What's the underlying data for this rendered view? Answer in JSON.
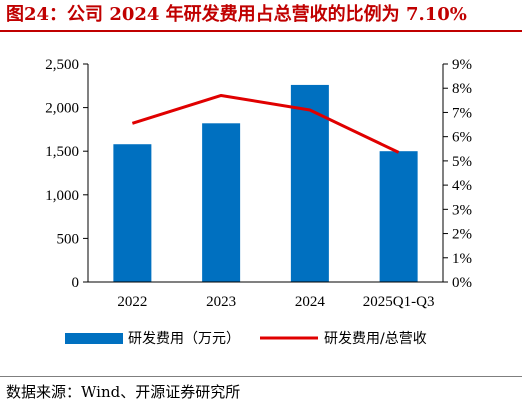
{
  "figure": {
    "title": "图24：公司 2024 年研发费用占总营收的比例为 7.10%",
    "source": "数据来源：Wind、开源证券研究所"
  },
  "chart_data": {
    "type": "bar+line",
    "categories": [
      "2022",
      "2023",
      "2024",
      "2025Q1-Q3"
    ],
    "series": [
      {
        "name": "研发费用（万元）",
        "type": "bar",
        "axis": "left",
        "color": "#0070c0",
        "values": [
          1580,
          1820,
          2260,
          1500
        ]
      },
      {
        "name": "研发费用/总营收",
        "type": "line",
        "axis": "right",
        "color": "#e00000",
        "values": [
          6.55,
          7.7,
          7.1,
          5.35
        ]
      }
    ],
    "y_left": {
      "min": 0,
      "max": 2500,
      "step": 500,
      "ticks": [
        "0",
        "500",
        "1,000",
        "1,500",
        "2,000",
        "2,500"
      ]
    },
    "y_right": {
      "min": 0,
      "max": 9,
      "step": 1,
      "ticks": [
        "0%",
        "1%",
        "2%",
        "3%",
        "4%",
        "5%",
        "6%",
        "7%",
        "8%",
        "9%"
      ]
    },
    "grid": false,
    "legend_position": "bottom"
  }
}
